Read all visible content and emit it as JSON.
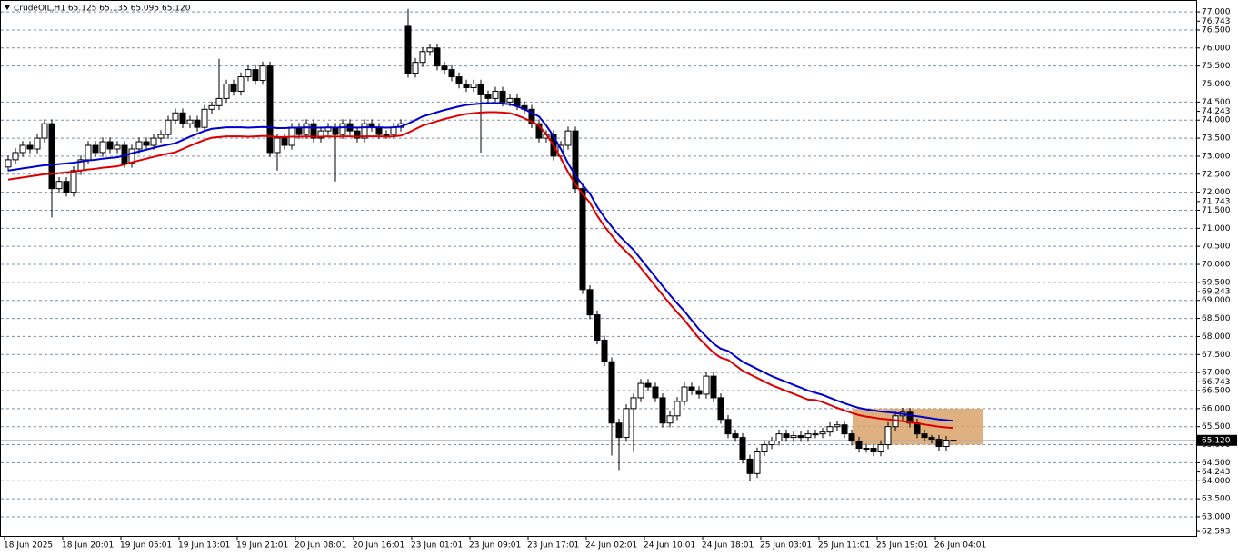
{
  "chart_data": {
    "type": "candlestick",
    "title": "CrudeOIL,H1  65.125 65.135 65.095 65.120",
    "categories": [
      "18 Jun 2025",
      null,
      null,
      null,
      null,
      null,
      null,
      null,
      "18 Jun 20:01",
      null,
      null,
      null,
      null,
      null,
      null,
      null,
      "19 Jun 05:01",
      null,
      null,
      null,
      null,
      null,
      null,
      null,
      "19 Jun 13:01",
      null,
      null,
      null,
      null,
      null,
      null,
      null,
      "19 Jun 21:01",
      null,
      null,
      null,
      null,
      null,
      null,
      null,
      "20 Jun 08:01",
      null,
      null,
      null,
      null,
      null,
      null,
      null,
      "20 Jun 16:01",
      null,
      null,
      null,
      null,
      null,
      null,
      null,
      "23 Jun 01:01",
      null,
      null,
      null,
      null,
      null,
      null,
      null,
      "23 Jun 09:01",
      null,
      null,
      null,
      null,
      null,
      null,
      null,
      "23 Jun 17:01",
      null,
      null,
      null,
      null,
      null,
      null,
      null,
      "24 Jun 02:01",
      null,
      null,
      null,
      null,
      null,
      null,
      null,
      "24 Jun 10:01",
      null,
      null,
      null,
      null,
      null,
      null,
      null,
      "24 Jun 18:01",
      null,
      null,
      null,
      null,
      null,
      null,
      null,
      "25 Jun 03:01",
      null,
      null,
      null,
      null,
      null,
      null,
      null,
      "25 Jun 11:01",
      null,
      null,
      null,
      null,
      null,
      null,
      null,
      "25 Jun 19:01",
      null,
      null,
      null,
      null,
      null,
      null,
      null,
      "26 Jun 04:01",
      null,
      null
    ],
    "open": [
      72.7,
      72.9,
      73.1,
      73.3,
      73.2,
      73.5,
      73.9,
      72.1,
      72.3,
      72.0,
      72.6,
      72.9,
      73.3,
      73.1,
      73.4,
      73.2,
      73.3,
      72.8,
      73.2,
      73.4,
      73.3,
      73.5,
      73.6,
      74.0,
      74.2,
      73.9,
      74.0,
      73.8,
      74.3,
      74.4,
      74.6,
      75.0,
      74.8,
      75.2,
      75.4,
      75.1,
      75.5,
      73.1,
      73.5,
      73.3,
      73.8,
      73.6,
      73.9,
      73.5,
      73.7,
      73.8,
      73.6,
      73.9,
      73.7,
      73.5,
      73.9,
      73.8,
      73.6,
      73.6,
      73.8,
      76.6,
      75.3,
      75.6,
      75.9,
      76.0,
      75.5,
      75.4,
      75.2,
      75.0,
      74.9,
      75.0,
      74.7,
      74.6,
      74.8,
      74.5,
      74.6,
      74.4,
      74.3,
      73.9,
      73.5,
      73.6,
      73.0,
      73.3,
      73.7,
      72.1,
      69.3,
      68.6,
      67.9,
      67.3,
      65.6,
      65.2,
      66.0,
      66.3,
      66.7,
      66.6,
      66.3,
      65.6,
      65.8,
      66.2,
      66.6,
      66.5,
      66.4,
      66.9,
      66.3,
      65.7,
      65.3,
      65.2,
      64.6,
      64.2,
      64.8,
      65.0,
      65.1,
      65.3,
      65.2,
      65.25,
      65.2,
      65.3,
      65.3,
      65.35,
      65.5,
      65.55,
      65.3,
      65.1,
      64.9,
      64.9,
      64.8,
      65.0,
      65.5,
      65.8,
      65.9,
      65.6,
      65.3,
      65.2,
      65.15,
      64.95,
      65.125
    ],
    "high": [
      73.02,
      73.22,
      73.42,
      73.42,
      73.62,
      74.02,
      74.02,
      72.42,
      72.42,
      72.72,
      73.02,
      73.42,
      73.42,
      73.52,
      73.52,
      73.42,
      73.42,
      73.32,
      73.52,
      73.52,
      73.62,
      73.72,
      74.12,
      74.32,
      74.32,
      74.12,
      74.12,
      74.42,
      74.52,
      75.7,
      75.12,
      75.12,
      75.32,
      75.52,
      75.52,
      75.62,
      75.62,
      73.62,
      73.62,
      73.92,
      73.92,
      74.02,
      74.02,
      73.82,
      73.92,
      73.92,
      74.02,
      74.02,
      73.82,
      74.02,
      74.02,
      73.92,
      73.72,
      73.92,
      74.02,
      77.08,
      75.72,
      76.02,
      76.12,
      76.12,
      75.62,
      75.52,
      75.32,
      75.12,
      75.12,
      75.12,
      74.82,
      74.92,
      74.92,
      74.72,
      74.72,
      74.52,
      74.42,
      74.02,
      73.72,
      73.72,
      73.42,
      73.82,
      73.82,
      72.22,
      69.42,
      68.72,
      68.02,
      67.42,
      65.72,
      66.12,
      66.42,
      66.82,
      66.82,
      66.72,
      66.42,
      65.92,
      66.32,
      66.72,
      66.72,
      66.62,
      67.02,
      67.02,
      66.42,
      65.82,
      65.42,
      65.32,
      64.72,
      64.92,
      65.12,
      65.22,
      65.42,
      65.42,
      65.37,
      65.37,
      65.42,
      65.42,
      65.47,
      65.62,
      65.67,
      65.67,
      65.42,
      65.22,
      65.02,
      65.02,
      65.12,
      65.62,
      65.92,
      66.02,
      66.02,
      65.72,
      65.42,
      65.27,
      65.27,
      65.24,
      65.135
    ],
    "low": [
      72.58,
      72.78,
      72.98,
      73.08,
      73.08,
      73.38,
      71.3,
      71.98,
      71.88,
      71.88,
      72.48,
      72.78,
      72.98,
      72.98,
      73.08,
      73.08,
      72.68,
      72.68,
      73.08,
      73.18,
      73.18,
      73.38,
      73.48,
      73.88,
      73.78,
      73.78,
      73.68,
      73.68,
      74.18,
      74.28,
      74.48,
      74.68,
      74.68,
      75.08,
      74.98,
      74.98,
      72.98,
      72.6,
      73.18,
      73.18,
      73.48,
      73.48,
      73.38,
      73.38,
      73.58,
      72.3,
      73.48,
      73.58,
      73.38,
      73.38,
      73.68,
      73.48,
      73.48,
      73.48,
      73.68,
      75.18,
      75.18,
      75.48,
      75.78,
      75.38,
      75.28,
      75.08,
      74.88,
      74.78,
      74.78,
      73.1,
      74.48,
      74.48,
      74.38,
      74.38,
      74.28,
      74.18,
      73.78,
      73.38,
      73.38,
      72.88,
      72.88,
      73.18,
      71.98,
      69.18,
      68.48,
      67.78,
      67.18,
      64.7,
      64.3,
      65.08,
      64.8,
      66.18,
      66.48,
      66.18,
      65.48,
      65.48,
      65.68,
      66.08,
      66.38,
      66.28,
      66.28,
      66.18,
      65.58,
      65.18,
      65.08,
      64.48,
      64.0,
      64.08,
      64.68,
      64.88,
      64.98,
      65.08,
      65.08,
      65.08,
      65.08,
      65.18,
      65.18,
      65.23,
      65.38,
      65.18,
      64.98,
      64.78,
      64.78,
      64.68,
      64.68,
      64.88,
      65.38,
      65.68,
      65.48,
      65.18,
      65.08,
      65.03,
      64.83,
      64.83,
      65.095
    ],
    "close": [
      72.9,
      73.1,
      73.3,
      73.2,
      73.5,
      73.9,
      72.1,
      72.3,
      72.0,
      72.6,
      72.9,
      73.3,
      73.1,
      73.4,
      73.2,
      73.3,
      72.8,
      73.2,
      73.4,
      73.3,
      73.5,
      73.6,
      74.0,
      74.2,
      73.9,
      74.0,
      73.8,
      74.3,
      74.4,
      74.6,
      75.0,
      74.8,
      75.2,
      75.4,
      75.1,
      75.5,
      73.1,
      73.5,
      73.3,
      73.8,
      73.6,
      73.9,
      73.5,
      73.7,
      73.8,
      73.6,
      73.9,
      73.7,
      73.5,
      73.9,
      73.8,
      73.6,
      73.6,
      73.8,
      73.9,
      75.3,
      75.6,
      75.9,
      76.0,
      75.5,
      75.4,
      75.2,
      75.0,
      74.9,
      75.0,
      74.7,
      74.6,
      74.8,
      74.5,
      74.6,
      74.4,
      74.3,
      73.9,
      73.5,
      73.6,
      73.0,
      73.3,
      73.7,
      72.1,
      69.3,
      68.6,
      67.9,
      67.3,
      65.6,
      65.2,
      66.0,
      66.3,
      66.7,
      66.6,
      66.3,
      65.6,
      65.8,
      66.2,
      66.6,
      66.5,
      66.4,
      66.9,
      66.3,
      65.7,
      65.3,
      65.2,
      64.6,
      64.2,
      64.8,
      65.0,
      65.1,
      65.3,
      65.2,
      65.25,
      65.2,
      65.3,
      65.3,
      65.35,
      65.5,
      65.55,
      65.3,
      65.1,
      64.9,
      64.9,
      64.8,
      65.0,
      65.5,
      65.8,
      65.9,
      65.6,
      65.3,
      65.2,
      65.15,
      64.95,
      65.125,
      65.12
    ],
    "lines": [
      {
        "color": "#0000cc",
        "values": [
          72.6,
          72.63,
          72.66,
          72.69,
          72.72,
          72.75,
          72.76,
          72.78,
          72.8,
          72.82,
          72.85,
          72.88,
          72.9,
          72.93,
          72.95,
          72.97,
          73.02,
          73.08,
          73.13,
          73.18,
          73.23,
          73.28,
          73.32,
          73.36,
          73.45,
          73.54,
          73.62,
          73.7,
          73.76,
          73.78,
          73.8,
          73.8,
          73.8,
          73.79,
          73.8,
          73.81,
          73.8,
          73.78,
          73.78,
          73.79,
          73.79,
          73.8,
          73.79,
          73.79,
          73.8,
          73.79,
          73.8,
          73.8,
          73.79,
          73.8,
          73.8,
          73.8,
          73.79,
          73.8,
          73.82,
          73.9,
          74.0,
          74.1,
          74.16,
          74.22,
          74.28,
          74.33,
          74.38,
          74.42,
          74.44,
          74.46,
          74.47,
          74.47,
          74.46,
          74.44,
          74.38,
          74.3,
          74.2,
          74.1,
          73.85,
          73.55,
          73.2,
          72.8,
          72.47,
          72.2,
          71.96,
          71.6,
          71.3,
          71.05,
          70.8,
          70.6,
          70.4,
          70.15,
          69.9,
          69.65,
          69.4,
          69.15,
          68.92,
          68.7,
          68.45,
          68.2,
          68.0,
          67.8,
          67.66,
          67.6,
          67.45,
          67.3,
          67.2,
          67.1,
          67.0,
          66.9,
          66.82,
          66.74,
          66.66,
          66.58,
          66.5,
          66.44,
          66.38,
          66.3,
          66.22,
          66.15,
          66.08,
          66.02,
          65.98,
          65.95,
          65.92,
          65.9,
          65.88,
          65.85,
          65.82,
          65.79,
          65.76,
          65.73,
          65.7,
          65.68,
          65.66
        ]
      },
      {
        "color": "#dd0000",
        "values": [
          72.35,
          72.38,
          72.41,
          72.44,
          72.47,
          72.5,
          72.51,
          72.53,
          72.55,
          72.57,
          72.6,
          72.63,
          72.65,
          72.68,
          72.7,
          72.72,
          72.77,
          72.83,
          72.88,
          72.93,
          72.98,
          73.03,
          73.07,
          73.11,
          73.2,
          73.29,
          73.37,
          73.45,
          73.51,
          73.53,
          73.55,
          73.55,
          73.55,
          73.54,
          73.55,
          73.56,
          73.55,
          73.53,
          73.53,
          73.54,
          73.54,
          73.55,
          73.54,
          73.54,
          73.55,
          73.54,
          73.55,
          73.55,
          73.54,
          73.55,
          73.55,
          73.55,
          73.54,
          73.55,
          73.57,
          73.65,
          73.75,
          73.85,
          73.91,
          73.97,
          74.03,
          74.08,
          74.13,
          74.17,
          74.19,
          74.21,
          74.22,
          74.22,
          74.21,
          74.19,
          74.13,
          74.05,
          73.95,
          73.85,
          73.6,
          73.3,
          72.95,
          72.55,
          72.22,
          71.95,
          71.71,
          71.35,
          71.05,
          70.8,
          70.55,
          70.35,
          70.15,
          69.9,
          69.65,
          69.4,
          69.15,
          68.9,
          68.67,
          68.45,
          68.2,
          67.95,
          67.75,
          67.55,
          67.41,
          67.35,
          67.2,
          67.05,
          66.95,
          66.85,
          66.75,
          66.65,
          66.57,
          66.49,
          66.41,
          66.33,
          66.25,
          66.24,
          66.18,
          66.1,
          66.02,
          65.95,
          65.88,
          65.82,
          65.78,
          65.75,
          65.72,
          65.7,
          65.68,
          65.65,
          65.62,
          65.59,
          65.56,
          65.53,
          65.5,
          65.48,
          65.46
        ]
      }
    ],
    "zone": {
      "high": 66.0,
      "low": 65.0,
      "color": "#d9a36b"
    },
    "last_price": {
      "value": 65.12,
      "label": "65.120"
    },
    "ylim": [
      62.47,
      77.33
    ],
    "yticks": [
      {
        "value": 63,
        "label": "63.000"
      },
      {
        "value": 63.5,
        "label": "63.500"
      },
      {
        "value": 64,
        "label": "64.000"
      },
      {
        "value": 64.5,
        "label": "64.500"
      },
      {
        "value": 65,
        "label": "65.000"
      },
      {
        "value": 65.5,
        "label": "65.500"
      },
      {
        "value": 66,
        "label": "66.000"
      },
      {
        "value": 66.5,
        "label": "66.500"
      },
      {
        "value": 67,
        "label": "67.000"
      },
      {
        "value": 67.5,
        "label": "67.500"
      },
      {
        "value": 68,
        "label": "68.000"
      },
      {
        "value": 68.5,
        "label": "68.500"
      },
      {
        "value": 69,
        "label": "69.000"
      },
      {
        "value": 69.5,
        "label": "69.500"
      },
      {
        "value": 70,
        "label": "70.000"
      },
      {
        "value": 70.5,
        "label": "70.500"
      },
      {
        "value": 71,
        "label": "71.000"
      },
      {
        "value": 71.5,
        "label": "71.500"
      },
      {
        "value": 72,
        "label": "72.000"
      },
      {
        "value": 72.5,
        "label": "72.500"
      },
      {
        "value": 73,
        "label": "73.000"
      },
      {
        "value": 73.5,
        "label": "73.500"
      },
      {
        "value": 74,
        "label": "74.000"
      },
      {
        "value": 74.5,
        "label": "74.500"
      },
      {
        "value": 75,
        "label": "75.000"
      },
      {
        "value": 75.5,
        "label": "75.500"
      },
      {
        "value": 76,
        "label": "76.000"
      },
      {
        "value": 76.5,
        "label": "76.500"
      },
      {
        "value": 77,
        "label": "77.000"
      }
    ],
    "ylabels": [
      {
        "value": 76.743,
        "label": "76.743"
      },
      {
        "value": 74.243,
        "label": "74.243"
      },
      {
        "value": 71.743,
        "label": "71.743"
      },
      {
        "value": 69.243,
        "label": "69.243"
      },
      {
        "value": 66.743,
        "label": "66.743"
      },
      {
        "value": 64.243,
        "label": "64.243"
      },
      {
        "value": 62.593,
        "label": "62.593"
      }
    ],
    "grid": true,
    "bull_color": "#ffffff",
    "bear_color": "#000000"
  }
}
